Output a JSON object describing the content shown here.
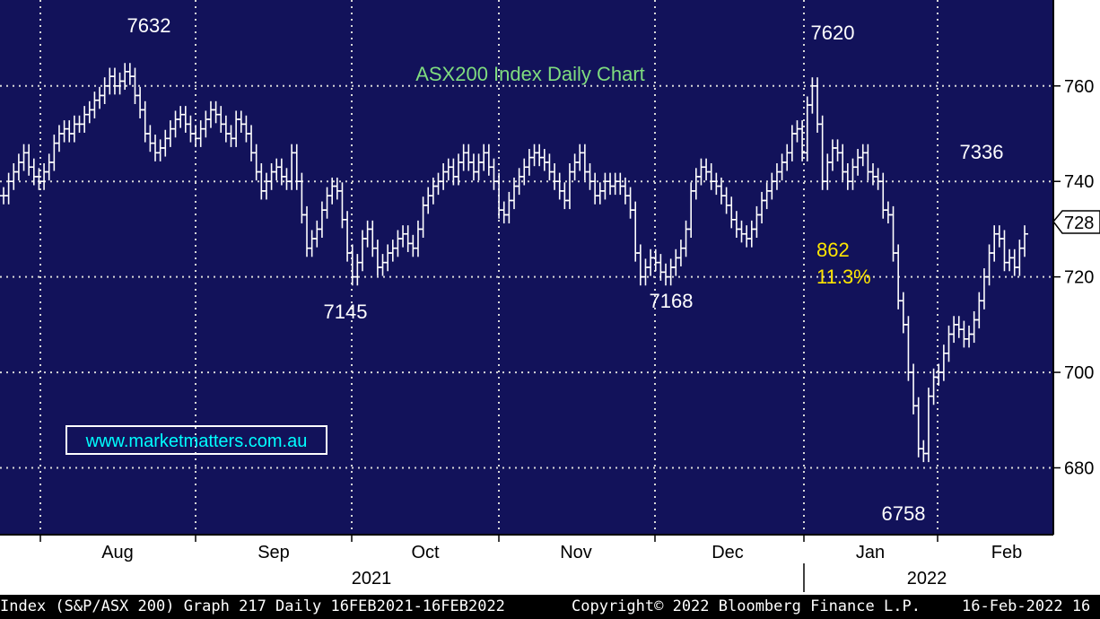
{
  "colors": {
    "plot_background": "#12125a",
    "grid": "#d8d8d8",
    "price_bars": "#ffffff",
    "title": "#7fdc7f",
    "move_annotation": "#ffe600",
    "watermark": "#00ffff",
    "footer_background": "#000000"
  },
  "chart_data": {
    "type": "ohlc",
    "title": "ASX200 Index Daily Chart",
    "y_axis": {
      "side": "right",
      "range": [
        6660,
        7780
      ],
      "ticks": [
        6800,
        7000,
        7200,
        7400,
        7600
      ],
      "tick_labels": [
        "680",
        "700",
        "720",
        "740",
        "760"
      ],
      "last_price_label": "728"
    },
    "x_axis": {
      "months": [
        "Aug",
        "Sep",
        "Oct",
        "Nov",
        "Dec",
        "Jan",
        "Feb"
      ],
      "years": [
        "2021",
        "2022"
      ]
    },
    "grid": true,
    "annotations": {
      "peak_aug": "7632",
      "low_sep": "7145",
      "low_nov": "7168",
      "peak_jan": "7620",
      "low_jan": "6758",
      "rebound_feb": "7336",
      "move_points": "862",
      "move_percent": "11.3%"
    },
    "watermark": "www.marketmatters.com.au",
    "closes": [
      7370,
      7400,
      7420,
      7440,
      7460,
      7430,
      7410,
      7400,
      7420,
      7440,
      7480,
      7500,
      7510,
      7500,
      7520,
      7520,
      7540,
      7550,
      7570,
      7580,
      7600,
      7620,
      7600,
      7610,
      7630,
      7620,
      7580,
      7550,
      7500,
      7480,
      7460,
      7470,
      7490,
      7510,
      7530,
      7540,
      7520,
      7500,
      7490,
      7510,
      7530,
      7550,
      7540,
      7520,
      7500,
      7490,
      7530,
      7520,
      7500,
      7460,
      7420,
      7380,
      7400,
      7420,
      7430,
      7410,
      7400,
      7460,
      7400,
      7330,
      7260,
      7280,
      7300,
      7340,
      7370,
      7390,
      7380,
      7320,
      7250,
      7200,
      7230,
      7280,
      7300,
      7260,
      7220,
      7230,
      7250,
      7260,
      7280,
      7290,
      7270,
      7260,
      7300,
      7350,
      7370,
      7390,
      7400,
      7420,
      7430,
      7410,
      7440,
      7460,
      7440,
      7420,
      7440,
      7460,
      7430,
      7400,
      7340,
      7330,
      7360,
      7390,
      7410,
      7430,
      7450,
      7460,
      7450,
      7440,
      7420,
      7400,
      7380,
      7360,
      7420,
      7440,
      7460,
      7420,
      7400,
      7370,
      7380,
      7400,
      7390,
      7400,
      7390,
      7370,
      7340,
      7250,
      7200,
      7220,
      7240,
      7230,
      7210,
      7200,
      7220,
      7240,
      7260,
      7300,
      7380,
      7410,
      7430,
      7420,
      7400,
      7390,
      7370,
      7350,
      7320,
      7300,
      7290,
      7280,
      7300,
      7330,
      7360,
      7380,
      7400,
      7420,
      7440,
      7460,
      7500,
      7510,
      7460,
      7560,
      7600,
      7520,
      7400,
      7440,
      7470,
      7460,
      7420,
      7400,
      7430,
      7450,
      7460,
      7420,
      7410,
      7400,
      7340,
      7330,
      7250,
      7150,
      7100,
      7000,
      6930,
      6840,
      6830,
      6950,
      6990,
      7000,
      7040,
      7080,
      7100,
      7090,
      7070,
      7080,
      7110,
      7150,
      7200,
      7250,
      7290,
      7280,
      7230,
      7240,
      7220,
      7260,
      7290
    ]
  },
  "footer": {
    "left": "Index (S&P/ASX 200) Graph 217  Daily 16FEB2021-16FEB2022",
    "copyright": "Copyright© 2022 Bloomberg Finance L.P.",
    "date": "16-Feb-2022 16"
  }
}
